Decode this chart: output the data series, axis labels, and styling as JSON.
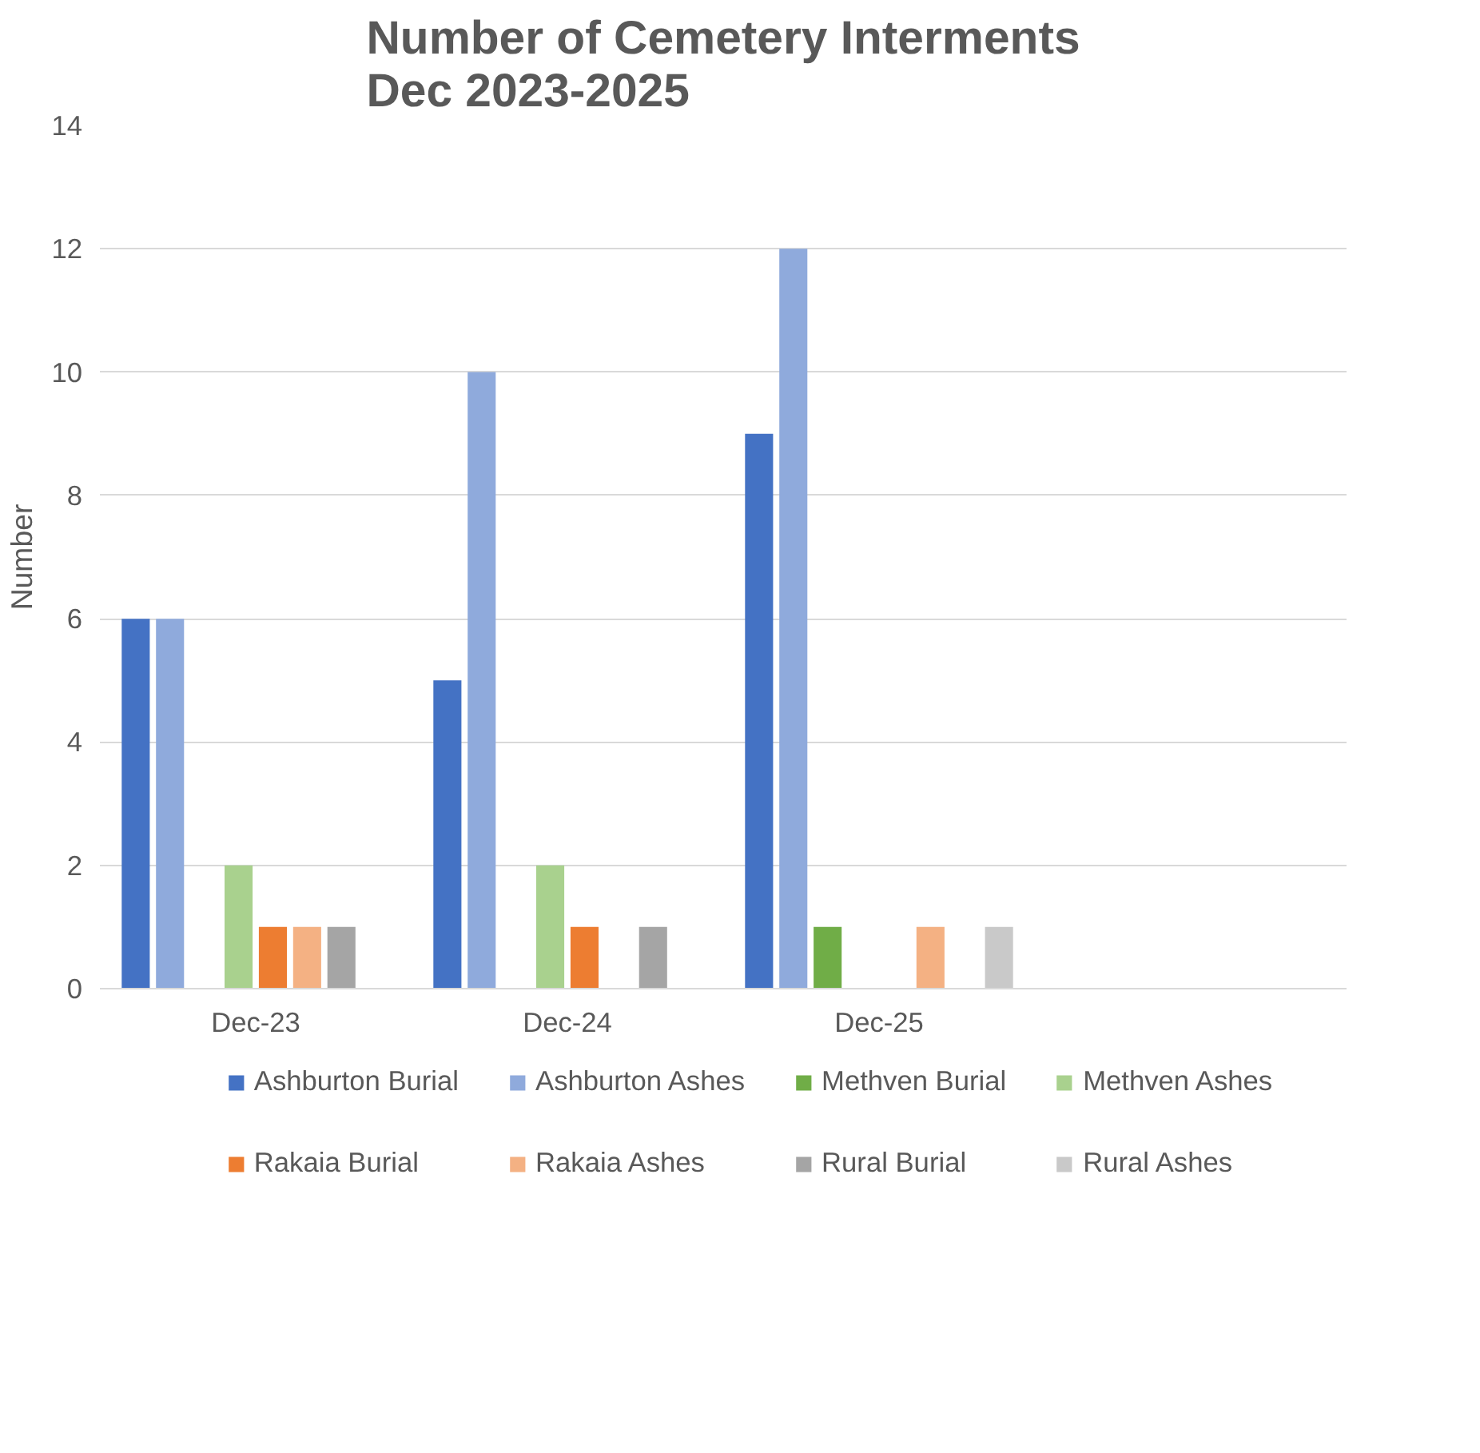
{
  "chart_data": {
    "type": "bar",
    "title": "Number of Cemetery Interments\nDec 2023-2025",
    "ylabel": "Number",
    "categories": [
      "Dec-23",
      "Dec-24",
      "Dec-25",
      null
    ],
    "series": [
      {
        "name": "Ashburton Burial",
        "color": "#4472c4",
        "values": [
          6,
          5,
          9,
          null
        ]
      },
      {
        "name": "Ashburton Ashes",
        "color": "#8faadc",
        "values": [
          6,
          10,
          12,
          null
        ]
      },
      {
        "name": "Methven Burial",
        "color": "#70ad47",
        "values": [
          0,
          0,
          1,
          null
        ]
      },
      {
        "name": "Methven Ashes",
        "color": "#a9d18e",
        "values": [
          2,
          2,
          0,
          null
        ]
      },
      {
        "name": "Rakaia Burial",
        "color": "#ed7d31",
        "values": [
          1,
          1,
          0,
          null
        ]
      },
      {
        "name": "Rakaia Ashes",
        "color": "#f4b183",
        "values": [
          1,
          0,
          1,
          null
        ]
      },
      {
        "name": "Rural Burial",
        "color": "#a5a5a5",
        "values": [
          1,
          1,
          0,
          null
        ]
      },
      {
        "name": "Rural Ashes",
        "color": "#c9c9c9",
        "values": [
          0,
          0,
          1,
          null
        ]
      }
    ],
    "ylim": [
      0,
      14
    ],
    "yticks": [
      0,
      2,
      4,
      6,
      8,
      10,
      12,
      14
    ],
    "grid": "y",
    "legend": "bottom"
  }
}
